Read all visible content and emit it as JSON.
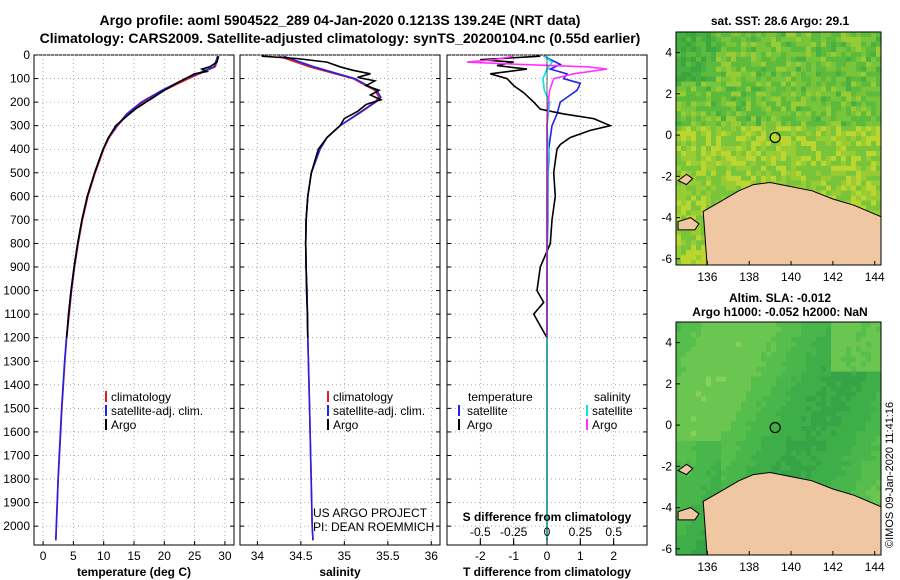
{
  "title_line1": "Argo profile: aoml 5904522_289 04-Jan-2020 0.1213S 139.24E (NRT data)",
  "title_line2": "Climatology: CARS2009. Satellite-adjusted climatology: synTS_20200104.nc (0.55d earlier)",
  "colors": {
    "climatology": "#e41a1c",
    "satellite": "#2222ee",
    "argo": "#000000",
    "sal_satellite": "#00e5e5",
    "sal_argo": "#ff33ff",
    "land": "#f0c7a3",
    "sea": "#33bb44"
  },
  "credits": {
    "line1": "US ARGO PROJECT",
    "line2": "PI: DEAN ROEMMICH"
  },
  "timestamp": "©IMOS 09-Jan-2020 11:41:16",
  "chart_data": [
    {
      "type": "line",
      "id": "temperature",
      "xlabel": "temperature (deg C)",
      "ylabel": "",
      "xlim": [
        -1.5,
        31.5
      ],
      "ylim": [
        2080,
        0
      ],
      "xticks": [
        0,
        5,
        10,
        15,
        20,
        25,
        30
      ],
      "yticks": [
        0,
        100,
        200,
        300,
        400,
        500,
        600,
        700,
        800,
        900,
        1000,
        1100,
        1200,
        1300,
        1400,
        1500,
        1600,
        1700,
        1800,
        1900,
        2000
      ],
      "legend": {
        "position": "center-right",
        "entries": [
          "climatology",
          "satellite-adj. clim.",
          "Argo"
        ]
      },
      "series": [
        {
          "name": "climatology",
          "color_key": "climatology",
          "depth": [
            5,
            50,
            100,
            150,
            200,
            250,
            300,
            350,
            400,
            500,
            600,
            700,
            800,
            900,
            1000,
            1100,
            1200,
            1300,
            1400,
            1500,
            1600,
            1700,
            1800,
            1900,
            2000,
            2060
          ],
          "values": [
            29.0,
            28.4,
            24.0,
            20.0,
            16.5,
            14.0,
            12.3,
            10.9,
            10.0,
            8.6,
            7.4,
            6.5,
            5.8,
            5.2,
            4.7,
            4.3,
            3.9,
            3.6,
            3.35,
            3.1,
            2.9,
            2.7,
            2.5,
            2.35,
            2.2,
            2.1
          ]
        },
        {
          "name": "satellite-adj. clim.",
          "color_key": "satellite",
          "depth": [
            5,
            50,
            100,
            150,
            200,
            250,
            300,
            350,
            400,
            500,
            600,
            700,
            800,
            900,
            1000,
            1100,
            1200,
            1300,
            1400,
            1500,
            1600,
            1700,
            1800,
            1900,
            2000,
            2060
          ],
          "values": [
            28.8,
            28.2,
            23.5,
            19.6,
            16.2,
            13.8,
            12.2,
            10.8,
            9.9,
            8.5,
            7.3,
            6.4,
            5.75,
            5.15,
            4.65,
            4.25,
            3.85,
            3.55,
            3.3,
            3.05,
            2.85,
            2.65,
            2.48,
            2.32,
            2.18,
            2.1
          ]
        },
        {
          "name": "Argo",
          "color_key": "argo",
          "depth": [
            5,
            30,
            50,
            60,
            70,
            80,
            100,
            120,
            150,
            180,
            200,
            230,
            260,
            300,
            350,
            400,
            450,
            500,
            600,
            700,
            800,
            900,
            1000,
            1100,
            1200
          ],
          "values": [
            28.9,
            28.7,
            27.5,
            26.2,
            27.0,
            25.0,
            23.5,
            22.0,
            20.0,
            18.2,
            17.0,
            15.2,
            13.8,
            12.0,
            10.8,
            9.9,
            9.2,
            8.5,
            7.3,
            6.4,
            5.7,
            5.1,
            4.6,
            4.2,
            3.9
          ]
        }
      ]
    },
    {
      "type": "line",
      "id": "salinity",
      "xlabel": "salinity",
      "ylabel": "",
      "xlim": [
        33.8,
        36.1
      ],
      "ylim": [
        2080,
        0
      ],
      "xticks": [
        34,
        34.5,
        35,
        35.5,
        36
      ],
      "xtick_labels": [
        "34",
        "34.5",
        "35",
        "35.5",
        "36"
      ],
      "legend": {
        "position": "center-right",
        "entries": [
          "climatology",
          "satellite-adj. clim.",
          "Argo"
        ]
      },
      "series": [
        {
          "name": "climatology",
          "color_key": "climatology",
          "depth": [
            5,
            50,
            100,
            150,
            180,
            200,
            250,
            300,
            350,
            400,
            500,
            600,
            700,
            800,
            900,
            1000,
            1200,
            1500,
            2000,
            2060
          ],
          "values": [
            34.25,
            34.6,
            35.1,
            35.35,
            35.4,
            35.35,
            35.15,
            34.95,
            34.8,
            34.72,
            34.62,
            34.58,
            34.56,
            34.555,
            34.56,
            34.57,
            34.58,
            34.6,
            34.63,
            34.64
          ]
        },
        {
          "name": "satellite-adj. clim.",
          "color_key": "satellite",
          "depth": [
            5,
            50,
            100,
            150,
            180,
            200,
            250,
            300,
            350,
            400,
            500,
            600,
            700,
            800,
            900,
            1000,
            1200,
            1500,
            2000,
            2060
          ],
          "values": [
            34.3,
            34.65,
            35.12,
            35.37,
            35.42,
            35.36,
            35.16,
            34.95,
            34.8,
            34.72,
            34.62,
            34.58,
            34.56,
            34.555,
            34.56,
            34.57,
            34.58,
            34.6,
            34.63,
            34.64
          ]
        },
        {
          "name": "Argo",
          "color_key": "argo",
          "depth": [
            5,
            15,
            30,
            50,
            65,
            80,
            95,
            110,
            130,
            150,
            170,
            190,
            210,
            240,
            270,
            300,
            350,
            400,
            500,
            600,
            700,
            800,
            900,
            1000,
            1100,
            1200
          ],
          "values": [
            34.05,
            34.45,
            34.8,
            34.95,
            35.1,
            35.3,
            35.15,
            35.35,
            35.25,
            35.4,
            35.3,
            35.42,
            35.25,
            35.15,
            35.0,
            34.95,
            34.8,
            34.7,
            34.62,
            34.58,
            34.56,
            34.555,
            34.56,
            34.565,
            34.575,
            34.58
          ]
        }
      ]
    },
    {
      "type": "line",
      "id": "difference",
      "xlabel": "T difference from climatology",
      "top_xlabel": "S difference from climatology",
      "xlim": [
        -3,
        3
      ],
      "ylim": [
        2080,
        0
      ],
      "xticks": [
        -2,
        -1,
        0,
        1,
        2
      ],
      "top_xticks": [
        -0.5,
        -0.25,
        0,
        0.25,
        0.5
      ],
      "top_xtick_labels": [
        "-0.5",
        "-0.25",
        "0",
        "0.25",
        "0.5"
      ],
      "legend": {
        "position": "center",
        "left_header": "temperature",
        "right_header": "salinity",
        "left_entries": [
          "satellite",
          "Argo"
        ],
        "right_entries": [
          "satellite",
          "Argo"
        ]
      },
      "series": [
        {
          "name": "T satellite",
          "color_key": "satellite",
          "depth": [
            5,
            40,
            60,
            80,
            100,
            120,
            150,
            170,
            200,
            250,
            300,
            350,
            400,
            450,
            500,
            600,
            700,
            800,
            1000,
            1200
          ],
          "values": [
            -0.1,
            0.4,
            0.1,
            0.6,
            0.5,
            1.0,
            0.9,
            0.7,
            0.4,
            0.3,
            0.15,
            0.1,
            0.05,
            0.05,
            0.03,
            0.02,
            0.02,
            0.01,
            0.0,
            0.0
          ]
        },
        {
          "name": "T Argo",
          "color_key": "argo",
          "depth": [
            5,
            20,
            30,
            45,
            60,
            80,
            100,
            130,
            160,
            200,
            230,
            250,
            270,
            300,
            320,
            350,
            380,
            400,
            450,
            500,
            600,
            700,
            800,
            900,
            1000,
            1050,
            1100,
            1150,
            1200
          ],
          "values": [
            -0.2,
            -2.0,
            -1.0,
            -1.5,
            -0.6,
            -1.7,
            -1.2,
            -1.0,
            -0.7,
            -0.4,
            -0.2,
            0.5,
            1.4,
            1.9,
            1.3,
            0.7,
            0.4,
            0.3,
            0.25,
            0.2,
            0.25,
            0.15,
            0.1,
            -0.2,
            -0.3,
            -0.1,
            -0.4,
            -0.2,
            0.0
          ]
        },
        {
          "name": "S satellite",
          "color_key": "sal_satellite",
          "depth": [
            5,
            30,
            60,
            100,
            150,
            200,
            300,
            400,
            600,
            800,
            1000,
            1200,
            1500,
            1800,
            2060
          ],
          "values": [
            -0.02,
            0.04,
            0.0,
            -0.03,
            -0.02,
            0.02,
            0.0,
            0.01,
            0.0,
            0.0,
            0.0,
            0.0,
            0.0,
            0.0,
            0.0
          ]
        },
        {
          "name": "S Argo",
          "color_key": "sal_argo",
          "depth": [
            5,
            20,
            30,
            40,
            50,
            60,
            80,
            100,
            150,
            200,
            300,
            400,
            500,
            600,
            800,
            1000,
            1200
          ],
          "values": [
            -0.25,
            -0.4,
            -0.6,
            -0.2,
            0.3,
            0.45,
            0.2,
            0.05,
            0.02,
            0.01,
            0.0,
            0.0,
            0.0,
            0.0,
            0.0,
            0.0,
            0.0
          ]
        }
      ]
    },
    {
      "type": "heatmap",
      "id": "sst_map",
      "title": "sat. SST: 28.6 Argo: 29.1",
      "xlim": [
        134.5,
        144.3
      ],
      "ylim": [
        -6.3,
        5.0
      ],
      "xticks": [
        136,
        138,
        140,
        142,
        144
      ],
      "yticks": [
        4,
        2,
        0,
        -2,
        -4,
        -6
      ],
      "marker": {
        "lon": 139.24,
        "lat": -0.12
      }
    },
    {
      "type": "heatmap",
      "id": "sla_map",
      "title_line1": "Altim. SLA: -0.012",
      "title_line2": "Argo h1000: -0.052 h2000: NaN",
      "xlim": [
        134.5,
        144.3
      ],
      "ylim": [
        -6.3,
        5.0
      ],
      "xticks": [
        136,
        138,
        140,
        142,
        144
      ],
      "yticks": [
        4,
        2,
        0,
        -2,
        -4,
        -6
      ],
      "marker": {
        "lon": 139.24,
        "lat": -0.12
      }
    }
  ]
}
